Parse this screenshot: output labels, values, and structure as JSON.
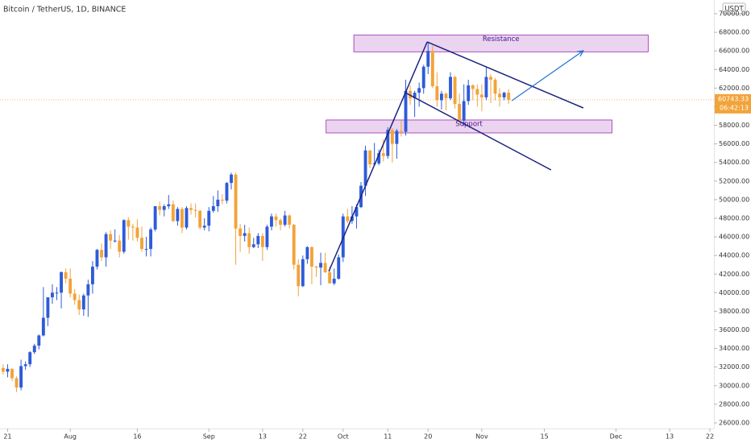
{
  "chart_data": {
    "type": "candlestick",
    "title": "Bitcoin / TetherUS, 1D, BINANCE",
    "currency": "USDT",
    "countdown": "06:42:13",
    "up_color": "#2e5bd8",
    "down_color": "#f2a33a",
    "open": [
      31900,
      31500,
      31800,
      30800,
      29800,
      32100,
      32300,
      33600,
      34300,
      35400,
      37300,
      39500,
      40000,
      40000,
      42200,
      41500,
      39900,
      39200,
      38200,
      39700,
      40900,
      42800,
      44600,
      43800,
      46300,
      45600,
      45600,
      44400,
      47800,
      47100,
      47000,
      45900,
      44700,
      44700,
      46800,
      49300,
      48900,
      49300,
      49500,
      47700,
      49000,
      47000,
      49100,
      48900,
      48800,
      47000,
      47200,
      48800,
      49300,
      50000,
      49900,
      51800,
      52700,
      46900,
      46100,
      46400,
      44900,
      45200,
      46100,
      44900,
      47100,
      48200,
      47800,
      47300,
      48300,
      47300,
      43000,
      40700,
      43600,
      44900,
      42800,
      42700,
      43200,
      42200,
      41000,
      41500,
      43800,
      48200,
      47700,
      48200,
      49200,
      51500,
      55300,
      53800,
      53900,
      55000,
      54700,
      57500,
      56000,
      57400,
      57300,
      61700,
      60900,
      61500,
      62000,
      64300,
      66000,
      62200,
      60700,
      61400,
      60900,
      63200,
      60300,
      58500,
      60600,
      62300,
      61900,
      61300,
      61000,
      63200,
      62900,
      61400,
      61000,
      61500
    ],
    "high": [
      32300,
      32300,
      31900,
      31000,
      32800,
      32600,
      33700,
      34500,
      35500,
      40600,
      39500,
      40900,
      40600,
      42300,
      42600,
      42600,
      40400,
      39800,
      39900,
      41400,
      43400,
      44700,
      45300,
      46500,
      46700,
      46800,
      46200,
      47900,
      48100,
      47400,
      47900,
      47100,
      46000,
      47000,
      49300,
      49800,
      49500,
      50500,
      49900,
      49200,
      49200,
      49300,
      49600,
      49600,
      48900,
      48000,
      49200,
      50400,
      51000,
      50600,
      51900,
      52900,
      52900,
      47400,
      47300,
      47000,
      45900,
      46400,
      46400,
      47300,
      48500,
      48500,
      48000,
      48800,
      48400,
      47400,
      43600,
      44000,
      45000,
      45000,
      42900,
      44300,
      44300,
      42800,
      42600,
      44100,
      48500,
      49000,
      49300,
      49500,
      51900,
      55800,
      55300,
      56100,
      55400,
      56500,
      57800,
      57700,
      57600,
      58500,
      62900,
      62300,
      61700,
      62600,
      64500,
      67000,
      66600,
      63700,
      61700,
      61500,
      63700,
      63300,
      61400,
      62400,
      62900,
      62400,
      62400,
      62400,
      64300,
      63500,
      63100,
      62000,
      61600,
      61900
    ],
    "low": [
      31200,
      30900,
      30500,
      29300,
      29500,
      31700,
      32000,
      33400,
      33900,
      35300,
      36400,
      38800,
      39200,
      38300,
      41000,
      39500,
      38700,
      37600,
      37500,
      37400,
      39900,
      42500,
      43400,
      42800,
      44700,
      45400,
      43800,
      44200,
      45700,
      45600,
      45500,
      44400,
      43900,
      43900,
      46600,
      48300,
      48200,
      49000,
      47600,
      47200,
      46400,
      46800,
      48400,
      48100,
      46800,
      46700,
      46600,
      48600,
      48700,
      49500,
      49600,
      51100,
      43000,
      44400,
      45500,
      44200,
      44800,
      44800,
      43400,
      44600,
      46700,
      47100,
      46700,
      47100,
      46900,
      42500,
      39600,
      40600,
      43100,
      40900,
      41700,
      40800,
      42100,
      41000,
      40800,
      41400,
      43300,
      47500,
      47400,
      46900,
      49100,
      50400,
      53400,
      53700,
      53700,
      54100,
      54400,
      54000,
      54400,
      56800,
      56900,
      60200,
      58900,
      60000,
      61400,
      63500,
      62000,
      60000,
      59700,
      59600,
      60700,
      59800,
      58100,
      58000,
      60200,
      60700,
      60000,
      59500,
      60700,
      60400,
      60700,
      60000,
      60700,
      60300
    ],
    "close": [
      31500,
      31800,
      30800,
      29800,
      32100,
      32300,
      33600,
      34300,
      35400,
      37300,
      39500,
      40000,
      40000,
      42200,
      41500,
      39900,
      39200,
      38200,
      39700,
      40900,
      42800,
      44600,
      43800,
      46300,
      45600,
      45600,
      44400,
      47800,
      47100,
      47000,
      45900,
      44700,
      44700,
      46800,
      49300,
      48900,
      49300,
      49500,
      47700,
      49000,
      47000,
      49100,
      48900,
      48800,
      47000,
      47200,
      48800,
      49300,
      50000,
      49900,
      51800,
      52700,
      46900,
      46100,
      46400,
      44900,
      45200,
      46100,
      44900,
      47100,
      48200,
      47800,
      47300,
      48300,
      47300,
      43000,
      40700,
      43600,
      44900,
      42800,
      42700,
      43200,
      42200,
      41000,
      41500,
      43800,
      48200,
      47700,
      48200,
      49200,
      51500,
      55300,
      53800,
      53900,
      55000,
      54700,
      57500,
      56000,
      57400,
      57300,
      61700,
      60900,
      61500,
      62000,
      64300,
      66000,
      62200,
      60700,
      61400,
      60900,
      63200,
      60300,
      58500,
      60600,
      62300,
      61900,
      61300,
      61000,
      63200,
      62900,
      61400,
      61000,
      61500,
      60743.33
    ],
    "xlim": [
      -0.7,
      158.9
    ],
    "ylim": [
      25392,
      71473
    ],
    "xticks": [
      {
        "value": 1,
        "label": "21"
      },
      {
        "value": 15,
        "label": "Aug"
      },
      {
        "value": 30,
        "label": "16"
      },
      {
        "value": 46,
        "label": "Sep"
      },
      {
        "value": 58,
        "label": "13"
      },
      {
        "value": 67,
        "label": "22"
      },
      {
        "value": 76,
        "label": "Oct"
      },
      {
        "value": 86,
        "label": "11"
      },
      {
        "value": 95,
        "label": "20"
      },
      {
        "value": 107,
        "label": "Nov"
      },
      {
        "value": 121,
        "label": "15"
      },
      {
        "value": 137,
        "label": "Dec"
      },
      {
        "value": 149,
        "label": "13"
      },
      {
        "value": 158,
        "label": "22"
      }
    ],
    "yticks": [
      {
        "value": 26000,
        "label": "26000.00"
      },
      {
        "value": 28000,
        "label": "28000.00"
      },
      {
        "value": 30000,
        "label": "30000.00"
      },
      {
        "value": 32000,
        "label": "32000.00"
      },
      {
        "value": 34000,
        "label": "34000.00"
      },
      {
        "value": 36000,
        "label": "36000.00"
      },
      {
        "value": 38000,
        "label": "38000.00"
      },
      {
        "value": 40000,
        "label": "40000.00"
      },
      {
        "value": 42000,
        "label": "42000.00"
      },
      {
        "value": 44000,
        "label": "44000.00"
      },
      {
        "value": 46000,
        "label": "46000.00"
      },
      {
        "value": 48000,
        "label": "48000.00"
      },
      {
        "value": 50000,
        "label": "50000.00"
      },
      {
        "value": 52000,
        "label": "52000.00"
      },
      {
        "value": 54000,
        "label": "54000.00"
      },
      {
        "value": 56000,
        "label": "56000.00"
      },
      {
        "value": 58000,
        "label": "58000.00"
      },
      {
        "value": 60000,
        "label": "60000.00"
      },
      {
        "value": 62000,
        "label": "62000.00"
      },
      {
        "value": 64000,
        "label": "64000.00"
      },
      {
        "value": 66000,
        "label": "66000.00"
      },
      {
        "value": 68000,
        "label": "68000.00"
      },
      {
        "value": 70000,
        "label": "70000.00"
      }
    ],
    "zones": [
      {
        "label": "Resistance",
        "x": [
          78.4,
          144.2
        ],
        "y": [
          65900,
          67700
        ]
      },
      {
        "label": "Support",
        "x": [
          72.2,
          136.1
        ],
        "y": [
          57180,
          58570
        ]
      }
    ],
    "trend_lines": [
      {
        "from": [
          72.8,
          42283
        ],
        "to": [
          94.8,
          66968
        ]
      },
      {
        "from": [
          94.8,
          66968
        ],
        "to": [
          129.7,
          59866
        ]
      },
      {
        "from": [
          89.9,
          61511
        ],
        "to": [
          122.5,
          53196
        ]
      }
    ],
    "arrow": {
      "from": [
        113.7,
        60645
      ],
      "to": [
        129.7,
        66016
      ]
    }
  }
}
